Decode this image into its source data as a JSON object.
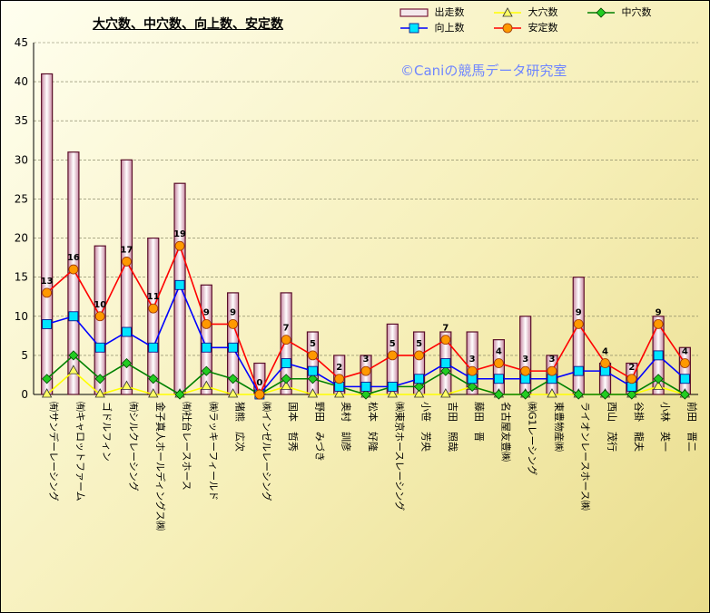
{
  "title": "大穴数、中穴数、向上数、安定数",
  "watermark": "©Caniの競馬データ研究室",
  "chart_data": {
    "type": "bar",
    "title": "大穴数、中穴数、向上数、安定数",
    "ylim": [
      0,
      45
    ],
    "yticks": [
      "0",
      "5",
      "10",
      "15",
      "20",
      "25",
      "30",
      "35",
      "40",
      "45"
    ],
    "grid": true,
    "legend_position": "top-right",
    "categories": [
      "㈲サンデーレーシング",
      "㈲キャロットファーム",
      "ゴドルフィン",
      "㈲シルクレーシング",
      "金子真人ホールディングス㈱",
      "㈲社台レースホース",
      "㈱ラッキーフィールド",
      "猪熊　広次",
      "㈱インゼルレーシング",
      "国本　哲秀",
      "野田　みづき",
      "奥村　訓彦",
      "松本　好隆",
      "㈱東京ホースレーシング",
      "小笹　芳央",
      "吉田　照哉",
      "藤田　晋",
      "名古屋友豊㈱",
      "㈱G1レーシング",
      "東豊物産㈱",
      "ライオンレースホース㈱",
      "西山　茂行",
      "谷掛　龍夫",
      "小林　英一",
      "前田　晋二"
    ],
    "series": [
      {
        "name": "出走数",
        "type": "bar",
        "color": "#ffffff",
        "values": [
          41,
          31,
          19,
          30,
          20,
          27,
          14,
          13,
          4,
          13,
          8,
          5,
          5,
          9,
          8,
          8,
          8,
          7,
          10,
          5,
          15,
          4,
          4,
          10,
          6
        ]
      },
      {
        "name": "大穴数",
        "type": "line",
        "color": "#ffff00",
        "marker": "triangle",
        "values": [
          0,
          3,
          0,
          1,
          0,
          0,
          1,
          0,
          0,
          1,
          0,
          0,
          0,
          0,
          0,
          0,
          1,
          0,
          0,
          0,
          0,
          0,
          0,
          1,
          0
        ]
      },
      {
        "name": "中穴数",
        "type": "line",
        "color": "#008000",
        "marker": "diamond",
        "values": [
          2,
          5,
          2,
          4,
          2,
          0,
          3,
          2,
          0,
          2,
          2,
          1,
          0,
          1,
          1,
          3,
          1,
          0,
          0,
          2,
          0,
          0,
          0,
          2,
          0
        ]
      },
      {
        "name": "向上数",
        "type": "line",
        "color": "#0000ff",
        "marker": "square",
        "values": [
          9,
          10,
          6,
          8,
          6,
          14,
          6,
          6,
          0,
          4,
          3,
          1,
          1,
          1,
          2,
          4,
          2,
          2,
          2,
          2,
          3,
          3,
          1,
          5,
          2
        ]
      },
      {
        "name": "安定数",
        "type": "line",
        "color": "#ff0000",
        "marker": "circle",
        "values": [
          13,
          16,
          10,
          17,
          11,
          19,
          9,
          9,
          0,
          7,
          5,
          2,
          3,
          5,
          5,
          7,
          3,
          4,
          3,
          3,
          9,
          4,
          2,
          9,
          4
        ]
      }
    ]
  }
}
